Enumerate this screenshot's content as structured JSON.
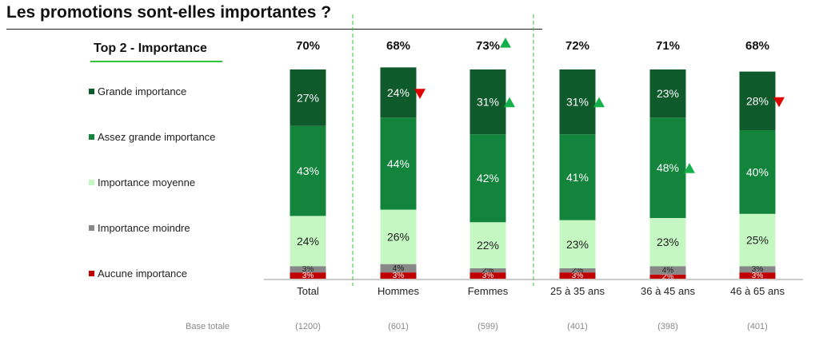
{
  "title": "Les promotions sont-elles importantes ?",
  "subtitle": "Top 2 - Importance",
  "colors": {
    "grande": "#0f5a2b",
    "assez": "#13843c",
    "moyenne": "#c5f7c3",
    "moindre": "#888888",
    "aucune": "#c00000",
    "up": "#14b04a",
    "down": "#e00000",
    "divider": "#2ec53a"
  },
  "chart_data": {
    "type": "bar",
    "stacked": true,
    "categories": [
      "Total",
      "Hommes",
      "Femmes",
      "25 à 35 ans",
      "36 à 45 ans",
      "46 à 65 ans"
    ],
    "top2_labels": [
      "70%",
      "68%",
      "73%",
      "72%",
      "71%",
      "68%"
    ],
    "base_label": "Base totale",
    "bases": [
      "(1200)",
      "(601)",
      "(599)",
      "(401)",
      "(398)",
      "(401)"
    ],
    "series": [
      {
        "name": "Aucune importance",
        "key": "aucune",
        "values": [
          3,
          3,
          3,
          3,
          2,
          3
        ]
      },
      {
        "name": "Importance moindre",
        "key": "moindre",
        "values": [
          3,
          4,
          2,
          2,
          4,
          3
        ]
      },
      {
        "name": "Importance moyenne",
        "key": "moyenne",
        "values": [
          24,
          26,
          22,
          23,
          23,
          25
        ]
      },
      {
        "name": "Assez grande importance",
        "key": "assez",
        "values": [
          43,
          44,
          42,
          41,
          48,
          40
        ]
      },
      {
        "name": "Grande importance",
        "key": "grande",
        "values": [
          27,
          24,
          31,
          31,
          23,
          28
        ]
      }
    ],
    "significance": [
      {
        "category": "Hommes",
        "series": "Grande importance",
        "direction": "down"
      },
      {
        "category": "Femmes",
        "series": "Grande importance",
        "direction": "up"
      },
      {
        "category": "Femmes",
        "series": "Top 2",
        "direction": "up"
      },
      {
        "category": "25 à 35 ans",
        "series": "Grande importance",
        "direction": "up"
      },
      {
        "category": "36 à 45 ans",
        "series": "Assez grande importance",
        "direction": "up"
      },
      {
        "category": "46 à 65 ans",
        "series": "Grande importance",
        "direction": "down"
      }
    ]
  }
}
